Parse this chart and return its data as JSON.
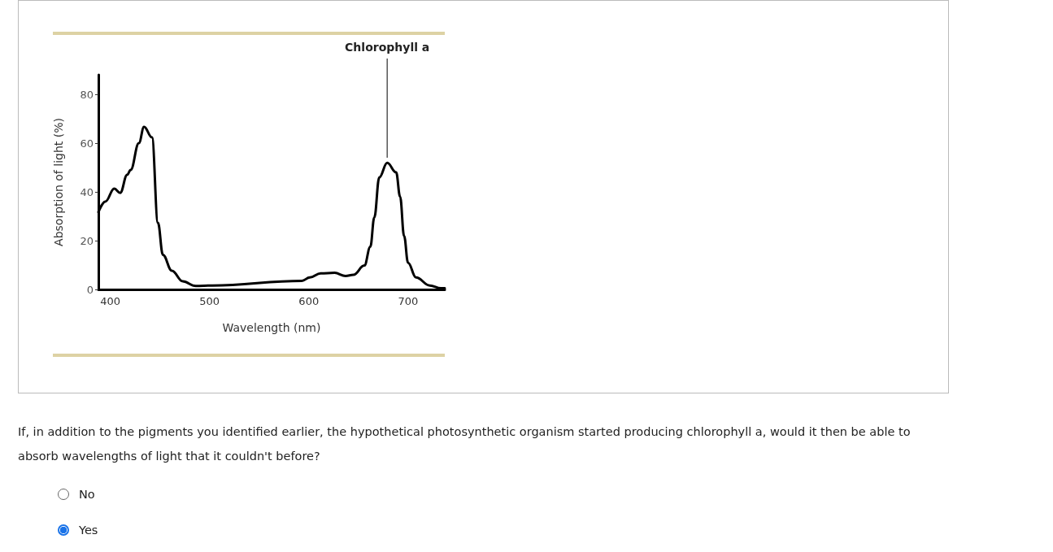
{
  "chart_data": {
    "type": "line",
    "xlabel": "Wavelength (nm)",
    "ylabel": "Absorption of light (%)",
    "x": [
      388,
      395,
      404,
      410,
      417,
      420.5,
      428.8,
      434,
      442,
      448,
      453,
      462,
      473,
      486,
      503,
      593,
      601,
      612,
      626,
      637,
      645,
      656,
      662,
      666,
      671,
      679,
      688,
      692,
      696,
      700,
      708,
      722,
      733,
      737
    ],
    "series": [
      {
        "color": "#000000",
        "values": [
          31.7,
          36,
          41.3,
          39.6,
          47,
          49,
          60,
          66.7,
          62.3,
          27.3,
          14.2,
          7.7,
          3.3,
          1.4,
          1.6,
          3.5,
          4.9,
          6.6,
          6.8,
          5.5,
          6,
          9.8,
          17.5,
          29.5,
          45.9,
          51.9,
          48,
          38,
          21.9,
          10.9,
          4.9,
          1.6,
          0.5,
          0.5
        ]
      }
    ],
    "xlim": [
      388,
      737
    ],
    "xticks": [
      400,
      500,
      600,
      700
    ],
    "ylim": [
      0,
      88
    ],
    "yticks": [
      0,
      20,
      40,
      60,
      80
    ],
    "grid": false,
    "marker": "none",
    "line_style": "solid",
    "annotations": [
      {
        "text": "Chlorophyll a",
        "x": 679,
        "y": 52
      },
      "If, in addition to the pigments you identified earlier, the hypothetical photosynthetic organism started producing chlorophyll a, would it then be able to absorb wavelengths of light that it couldn't before?",
      "No",
      "Yes"
    ]
  }
}
